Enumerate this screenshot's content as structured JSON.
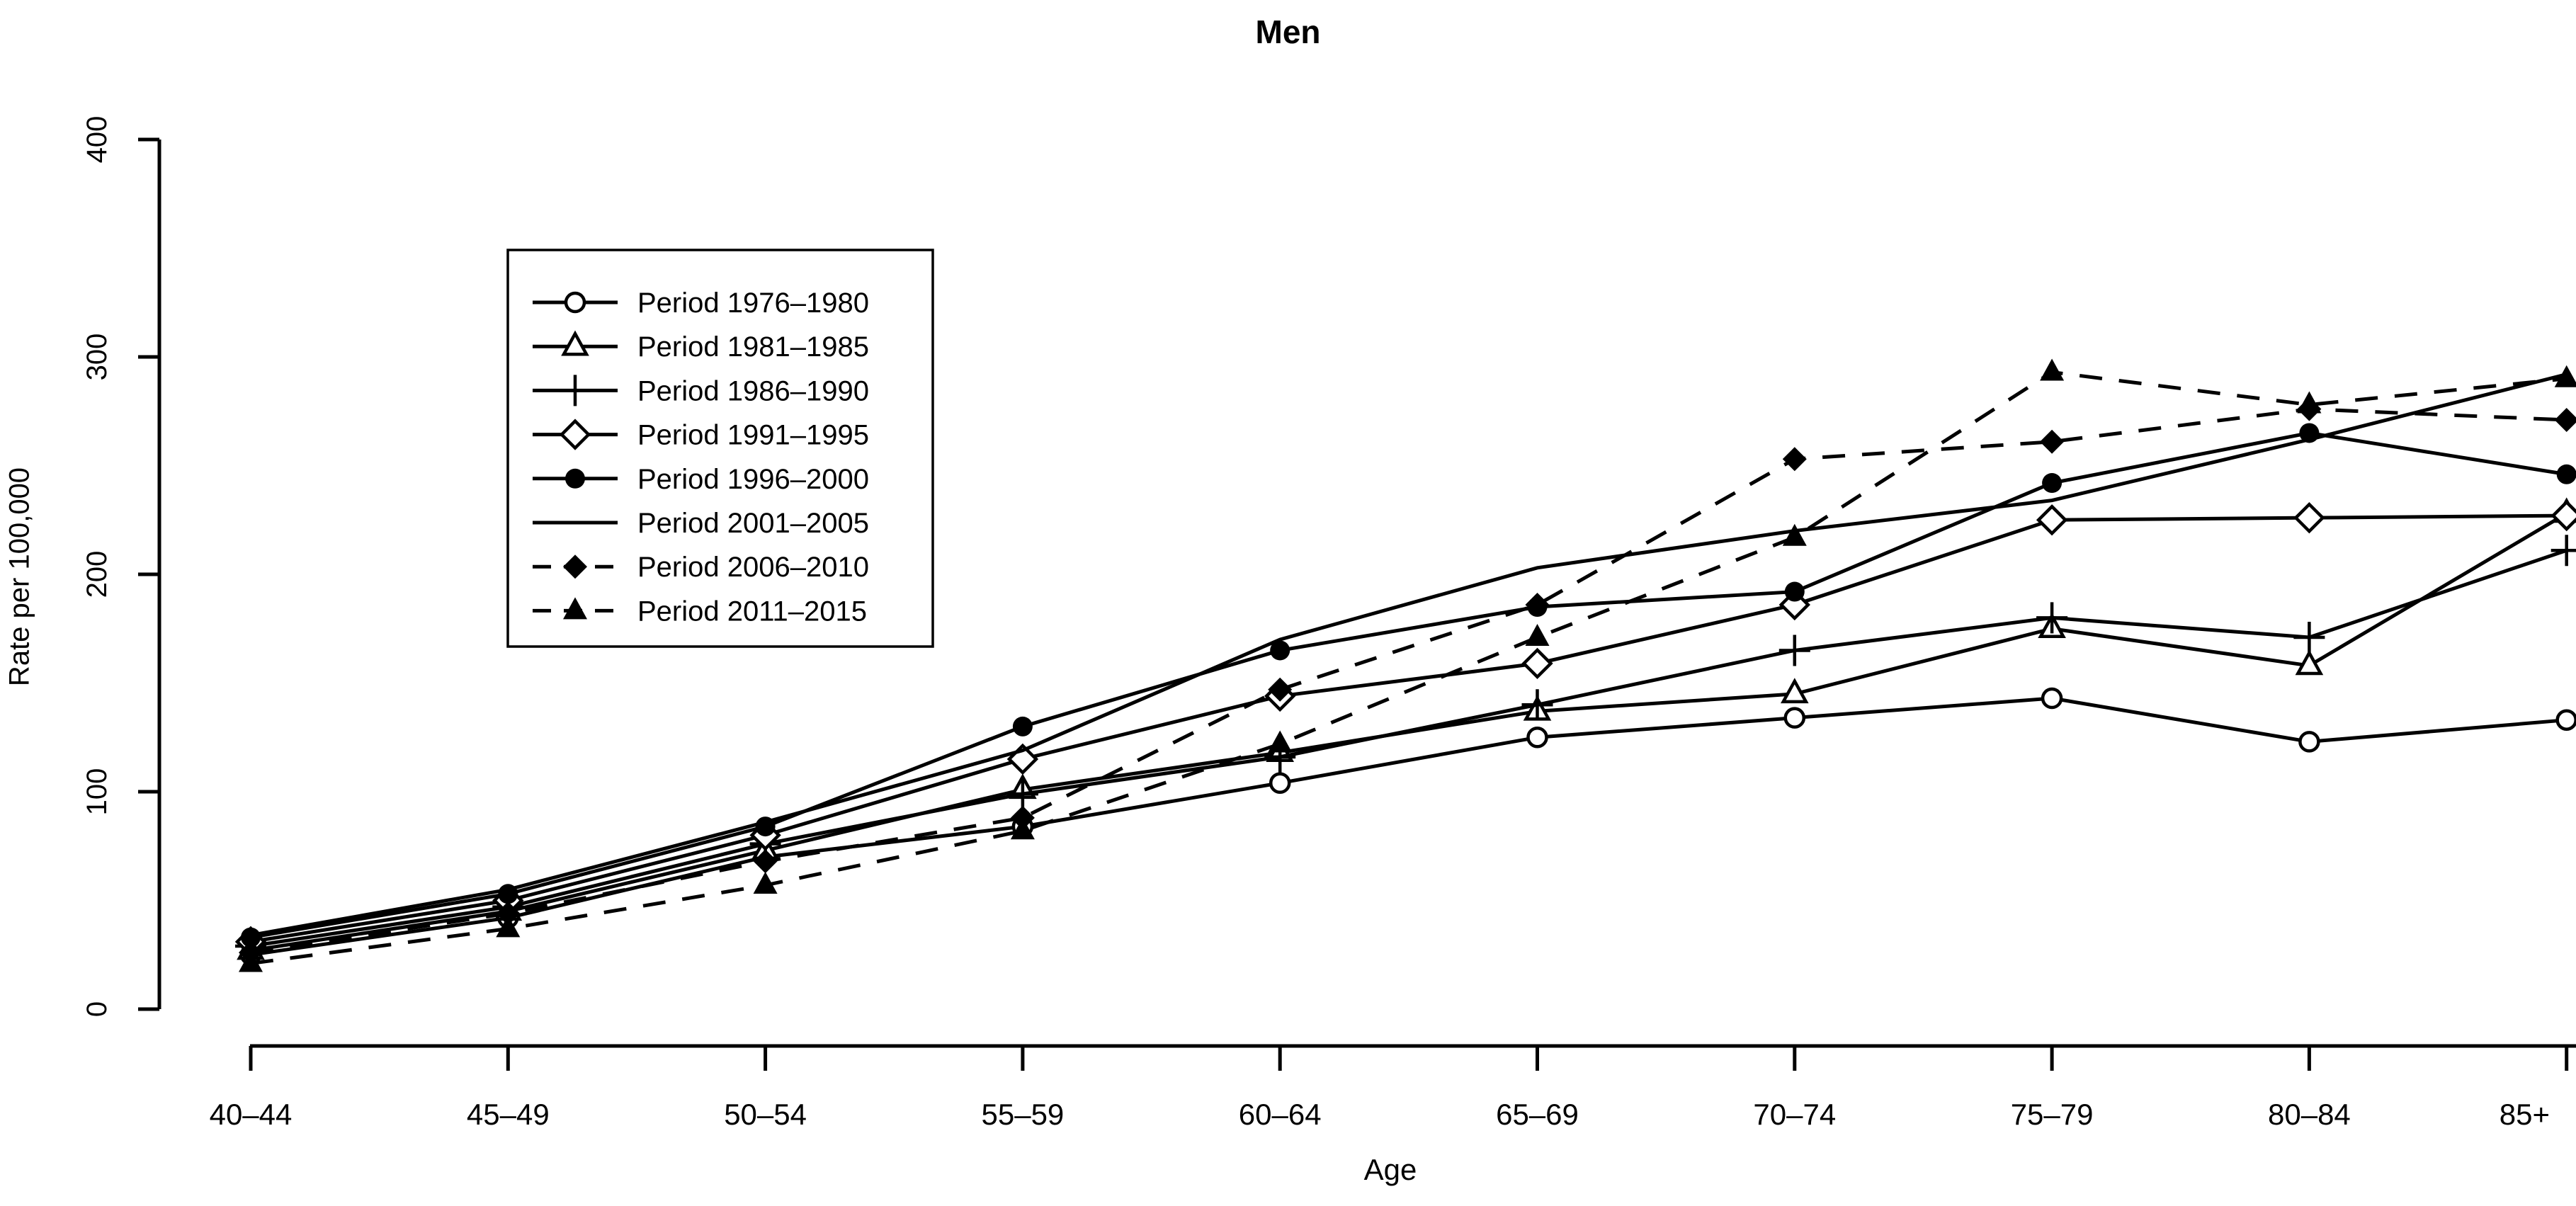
{
  "chart_data": {
    "type": "line",
    "title": "Men",
    "xlabel": "Age",
    "ylabel": "Rate per 100,000",
    "ylim": [
      0,
      400
    ],
    "yticks": [
      "0",
      "100",
      "200",
      "300",
      "400"
    ],
    "ytick_values": [
      0,
      100,
      200,
      300,
      400
    ],
    "grid": false,
    "legend_position": "upper-left-inside",
    "axis_color": "#000000",
    "background_color": "#ffffff",
    "categories": [
      "40–44",
      "45–49",
      "50–54",
      "55–59",
      "60–64",
      "65–69",
      "70–74",
      "75–79",
      "80–84",
      "85+"
    ],
    "series": [
      {
        "name": "Period 1976–1980",
        "marker": "open-circle",
        "line": "solid",
        "color": "#000000",
        "values": [
          25,
          42,
          70,
          84,
          104,
          125,
          134,
          143,
          123,
          133
        ]
      },
      {
        "name": "Period 1981–1985",
        "marker": "open-triangle",
        "line": "solid",
        "color": "#000000",
        "values": [
          27,
          45,
          73,
          101,
          118,
          137,
          145,
          175,
          158,
          228
        ]
      },
      {
        "name": "Period 1986–1990",
        "marker": "plus",
        "line": "solid",
        "color": "#000000",
        "values": [
          29,
          47,
          76,
          99,
          116,
          140,
          165,
          180,
          171,
          211
        ]
      },
      {
        "name": "Period 1991–1995",
        "marker": "open-diamond",
        "line": "solid",
        "color": "#000000",
        "values": [
          31,
          50,
          80,
          115,
          144,
          159,
          186,
          225,
          226,
          227
        ]
      },
      {
        "name": "Period 1996–2000",
        "marker": "filled-circle",
        "line": "solid",
        "color": "#000000",
        "values": [
          33,
          53,
          84,
          130,
          165,
          185,
          192,
          242,
          265,
          246
        ]
      },
      {
        "name": "Period 2001–2005",
        "marker": "filled-square",
        "line": "solid",
        "color": "#000000",
        "values": [
          34,
          55,
          86,
          119,
          170,
          203,
          220,
          234,
          262,
          292
        ]
      },
      {
        "name": "Period 2006–2010",
        "marker": "filled-diamond",
        "line": "dashed",
        "color": "#000000",
        "values": [
          26,
          44,
          68,
          88,
          147,
          186,
          253,
          261,
          276,
          271
        ]
      },
      {
        "name": "Period 2011–2015",
        "marker": "filled-triangle",
        "line": "dashed",
        "color": "#000000",
        "values": [
          21,
          37,
          57,
          82,
          122,
          171,
          217,
          293,
          278,
          290
        ]
      }
    ]
  }
}
